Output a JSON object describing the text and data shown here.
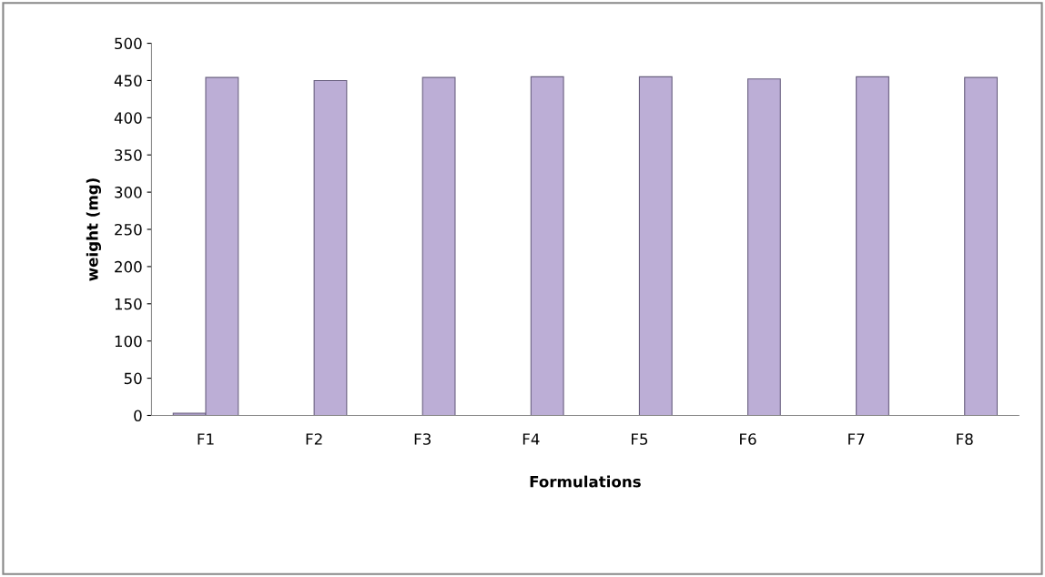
{
  "chart_data": {
    "type": "bar",
    "xlabel": "Formulations",
    "ylabel": "weight (mg)",
    "categories": [
      "F1",
      "F2",
      "F3",
      "F4",
      "F5",
      "F6",
      "F7",
      "F8"
    ],
    "series": [
      {
        "color": "#a99cc4",
        "values": [
          3,
          null,
          null,
          null,
          null,
          null,
          null,
          null
        ]
      },
      {
        "color": "#bcaed6",
        "values": [
          454,
          450,
          454,
          455,
          455,
          452,
          455,
          454
        ]
      }
    ],
    "ylim": [
      0,
      500
    ],
    "yticks": [
      0,
      50,
      100,
      150,
      200,
      250,
      300,
      350,
      400,
      450,
      500
    ],
    "grid": false,
    "legend": false
  }
}
